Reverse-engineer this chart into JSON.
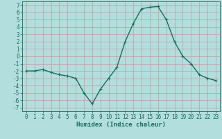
{
  "x": [
    0,
    1,
    2,
    3,
    4,
    5,
    6,
    7,
    8,
    9,
    10,
    11,
    12,
    13,
    14,
    15,
    16,
    17,
    18,
    19,
    20,
    21,
    22,
    23
  ],
  "y": [
    -2,
    -2,
    -1.8,
    -2.2,
    -2.5,
    -2.7,
    -3,
    -5,
    -6.5,
    -4.5,
    -3,
    -1.5,
    2,
    4.5,
    6.5,
    6.7,
    6.8,
    5,
    2,
    0,
    -1,
    -2.5,
    -3,
    -3.3
  ],
  "line_color": "#1a6b5a",
  "marker": "+",
  "marker_size": 3,
  "bg_color": "#b2dede",
  "grid_major_color": "#c89898",
  "grid_minor_color": "#c8b8b8",
  "xlabel": "Humidex (Indice chaleur)",
  "xlim": [
    -0.5,
    23.5
  ],
  "ylim": [
    -7.5,
    7.5
  ],
  "yticks": [
    -7,
    -6,
    -5,
    -4,
    -3,
    -2,
    -1,
    0,
    1,
    2,
    3,
    4,
    5,
    6,
    7
  ],
  "xticks": [
    0,
    1,
    2,
    3,
    4,
    5,
    6,
    7,
    8,
    9,
    10,
    11,
    12,
    13,
    14,
    15,
    16,
    17,
    18,
    19,
    20,
    21,
    22,
    23
  ],
  "tick_fontsize": 5.5,
  "xlabel_fontsize": 6.5,
  "line_width": 1.0,
  "marker_edge_width": 0.8
}
